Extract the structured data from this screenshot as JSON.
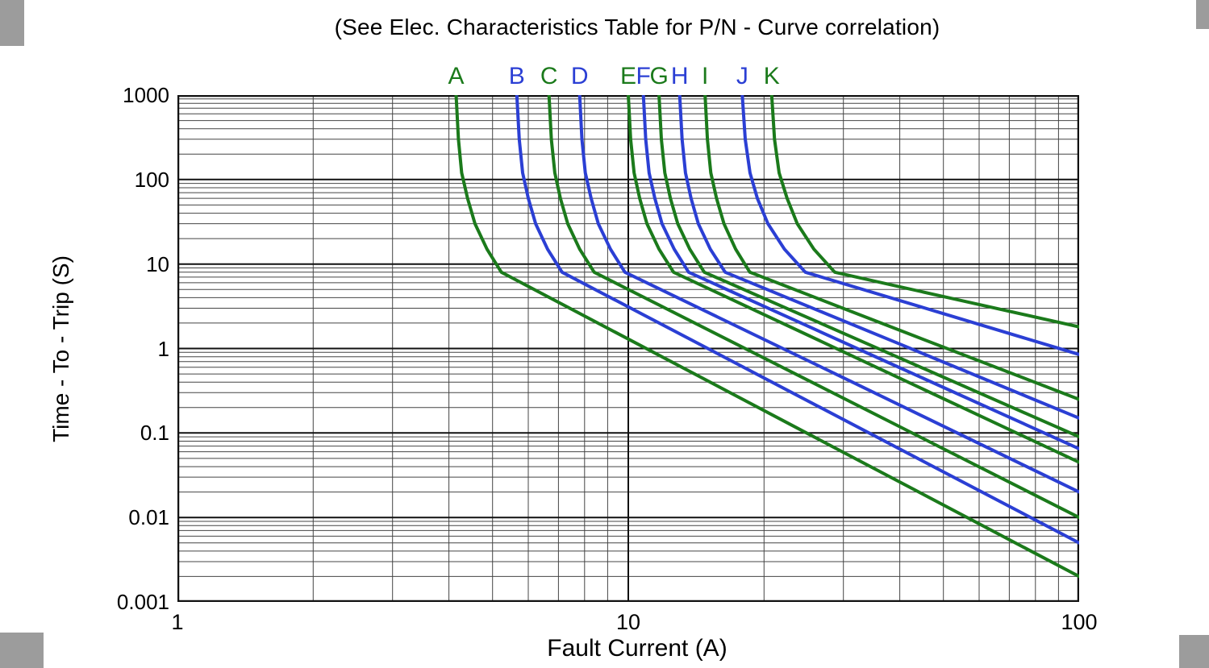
{
  "chart_data": {
    "type": "line",
    "title": "(See Elec. Characteristics Table for P/N - Curve correlation)",
    "xlabel": "Fault Current (A)",
    "ylabel": "Time - To - Trip (S)",
    "x_scale": "log",
    "y_scale": "log",
    "xlim": [
      1,
      100
    ],
    "ylim": [
      0.001,
      1000
    ],
    "grid": "log major + minor, both axes",
    "legend_position": "curve letters above plot",
    "x_ticks": [
      {
        "v": 1,
        "label": "1"
      },
      {
        "v": 10,
        "label": "10"
      },
      {
        "v": 100,
        "label": "100"
      }
    ],
    "y_ticks": [
      {
        "v": 1000,
        "label": "1000"
      },
      {
        "v": 100,
        "label": "100"
      },
      {
        "v": 10,
        "label": "10"
      },
      {
        "v": 1,
        "label": "1"
      },
      {
        "v": 0.1,
        "label": "0.1"
      },
      {
        "v": 0.01,
        "label": "0.01"
      },
      {
        "v": 0.001,
        "label": "0.001"
      }
    ],
    "colors": {
      "green": "#1b7a1b",
      "blue": "#2b3fd4"
    },
    "grid_colors": {
      "major": "#111111",
      "minor": "#444444"
    },
    "series": [
      {
        "name": "A",
        "color_key": "green",
        "points": [
          [
            4.15,
            1000
          ],
          [
            4.2,
            300
          ],
          [
            4.27,
            120
          ],
          [
            4.4,
            60
          ],
          [
            4.57,
            30
          ],
          [
            4.86,
            15
          ],
          [
            5.23,
            8
          ],
          [
            22.9,
            0.126
          ],
          [
            100,
            0.002
          ]
        ]
      },
      {
        "name": "B",
        "color_key": "blue",
        "points": [
          [
            5.66,
            1000
          ],
          [
            5.73,
            300
          ],
          [
            5.83,
            120
          ],
          [
            6.0,
            60
          ],
          [
            6.23,
            30
          ],
          [
            6.62,
            15
          ],
          [
            7.13,
            8
          ],
          [
            26.7,
            0.2
          ],
          [
            100,
            0.005
          ]
        ]
      },
      {
        "name": "C",
        "color_key": "green",
        "points": [
          [
            6.67,
            1000
          ],
          [
            6.75,
            300
          ],
          [
            6.87,
            120
          ],
          [
            7.07,
            60
          ],
          [
            7.34,
            30
          ],
          [
            7.8,
            15
          ],
          [
            8.4,
            8
          ],
          [
            29.0,
            0.283
          ],
          [
            100,
            0.01
          ]
        ]
      },
      {
        "name": "D",
        "color_key": "blue",
        "points": [
          [
            7.8,
            1000
          ],
          [
            7.89,
            300
          ],
          [
            8.03,
            120
          ],
          [
            8.27,
            60
          ],
          [
            8.58,
            30
          ],
          [
            9.13,
            15
          ],
          [
            9.83,
            8
          ],
          [
            31.4,
            0.4
          ],
          [
            100,
            0.02
          ]
        ]
      },
      {
        "name": "E",
        "color_key": "green",
        "points": [
          [
            10.0,
            1000
          ],
          [
            10.12,
            300
          ],
          [
            10.3,
            120
          ],
          [
            10.6,
            60
          ],
          [
            11.0,
            30
          ],
          [
            11.7,
            15
          ],
          [
            12.6,
            8
          ],
          [
            35.5,
            0.6
          ],
          [
            100,
            0.045
          ]
        ]
      },
      {
        "name": "F",
        "color_key": "blue",
        "points": [
          [
            10.8,
            1000
          ],
          [
            10.93,
            300
          ],
          [
            11.12,
            120
          ],
          [
            11.45,
            60
          ],
          [
            11.88,
            30
          ],
          [
            12.64,
            15
          ],
          [
            13.61,
            8
          ],
          [
            36.9,
            0.72
          ],
          [
            100,
            0.065
          ]
        ]
      },
      {
        "name": "G",
        "color_key": "green",
        "points": [
          [
            11.7,
            1000
          ],
          [
            11.84,
            300
          ],
          [
            12.05,
            120
          ],
          [
            12.4,
            60
          ],
          [
            12.87,
            30
          ],
          [
            13.69,
            15
          ],
          [
            14.74,
            8
          ],
          [
            38.4,
            0.85
          ],
          [
            100,
            0.09
          ]
        ]
      },
      {
        "name": "H",
        "color_key": "blue",
        "points": [
          [
            13.0,
            1000
          ],
          [
            13.16,
            300
          ],
          [
            13.39,
            120
          ],
          [
            13.78,
            60
          ],
          [
            14.3,
            30
          ],
          [
            15.2,
            15
          ],
          [
            16.4,
            8
          ],
          [
            40.5,
            1.1
          ],
          [
            100,
            0.15
          ]
        ]
      },
      {
        "name": "I",
        "color_key": "green",
        "points": [
          [
            14.8,
            1000
          ],
          [
            14.98,
            300
          ],
          [
            15.24,
            120
          ],
          [
            15.69,
            60
          ],
          [
            16.3,
            30
          ],
          [
            17.3,
            15
          ],
          [
            18.6,
            8
          ],
          [
            43.1,
            1.41
          ],
          [
            100,
            0.25
          ]
        ]
      },
      {
        "name": "J",
        "color_key": "blue",
        "points": [
          [
            17.9,
            1000
          ],
          [
            18.17,
            300
          ],
          [
            18.62,
            120
          ],
          [
            19.33,
            60
          ],
          [
            20.4,
            30
          ],
          [
            22.2,
            15
          ],
          [
            24.7,
            8
          ],
          [
            49.7,
            2.61
          ],
          [
            100,
            0.85
          ]
        ]
      },
      {
        "name": "K",
        "color_key": "green",
        "points": [
          [
            20.8,
            1000
          ],
          [
            21.1,
            300
          ],
          [
            21.6,
            120
          ],
          [
            22.5,
            60
          ],
          [
            23.7,
            30
          ],
          [
            25.8,
            15
          ],
          [
            28.7,
            8
          ],
          [
            53.6,
            3.79
          ],
          [
            100,
            1.8
          ]
        ]
      }
    ]
  }
}
